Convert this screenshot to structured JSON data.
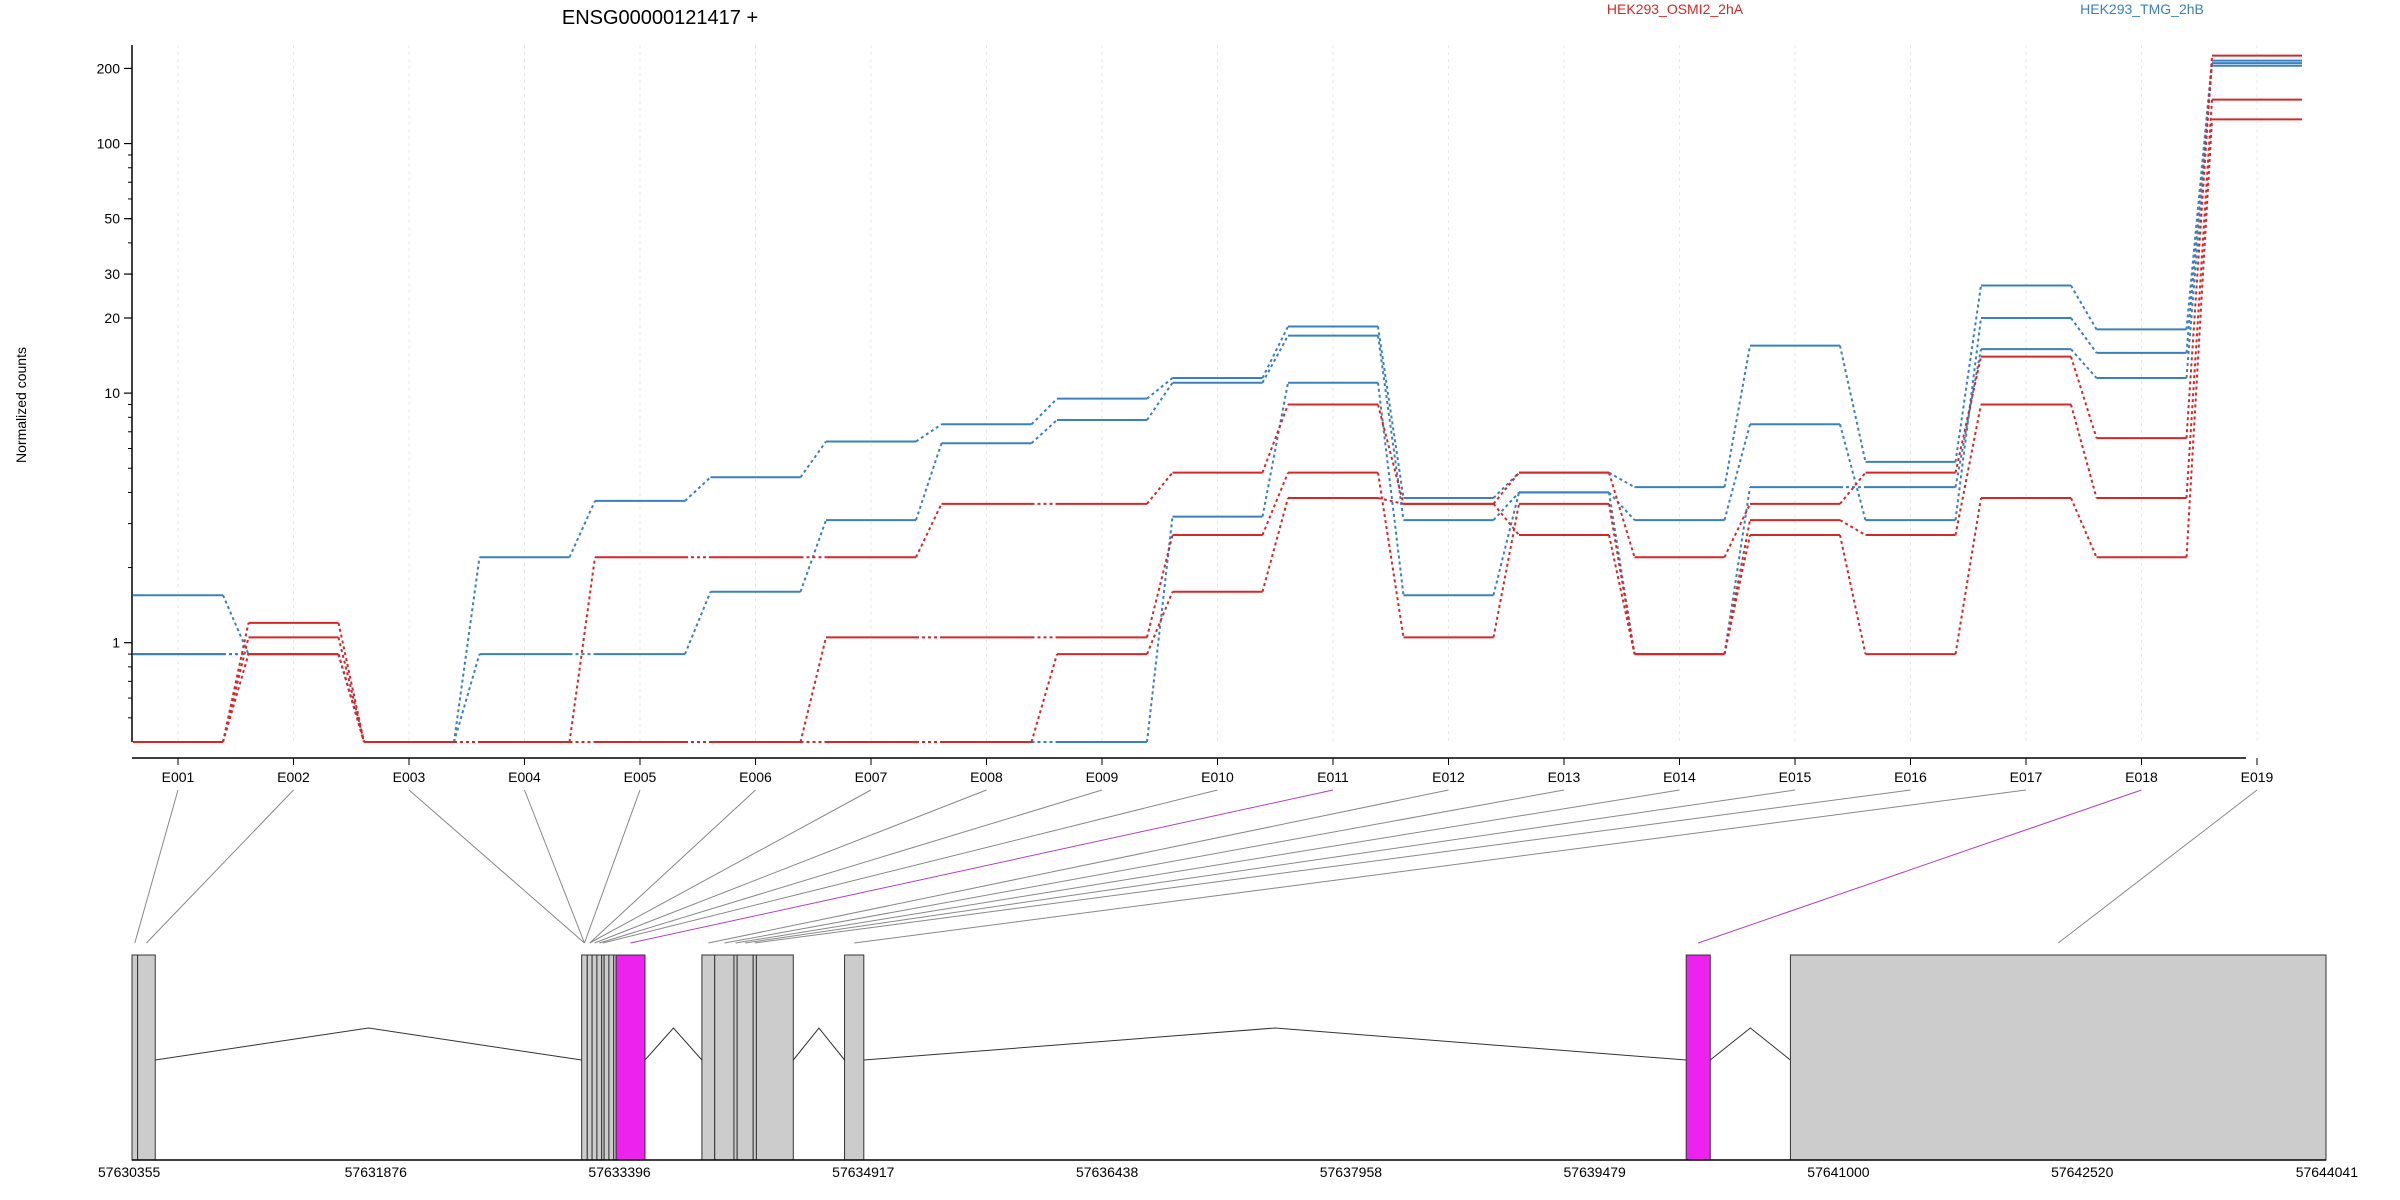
{
  "chart_data": {
    "type": "line",
    "title": "ENSG00000121417 +",
    "ylabel": "Normalized counts",
    "yscale": "log",
    "ylim": [
      0.4,
      260
    ],
    "y_ticks": [
      {
        "value": 1,
        "label": "1"
      },
      {
        "value": 10,
        "label": "10"
      },
      {
        "value": 20,
        "label": "20"
      },
      {
        "value": 30,
        "label": "30"
      },
      {
        "value": 50,
        "label": "50"
      },
      {
        "value": 100,
        "label": "100"
      },
      {
        "value": 200,
        "label": "200"
      }
    ],
    "categories": [
      "E001",
      "E002",
      "E003",
      "E004",
      "E005",
      "E006",
      "E007",
      "E008",
      "E009",
      "E010",
      "E011",
      "E012",
      "E013",
      "E014",
      "E015",
      "E016",
      "E017",
      "E018",
      "E019"
    ],
    "legend": [
      {
        "name": "HEK293_OSMI2_2hA",
        "color": "#d62728"
      },
      {
        "name": "HEK293_TMG_2hB",
        "color": "#3a80c0"
      }
    ],
    "series": [
      {
        "group": "HEK293_TMG_2hB",
        "color": "#3a80c0",
        "values": [
          1.55,
          0.9,
          0.4,
          2.2,
          3.7,
          4.6,
          6.4,
          7.5,
          9.5,
          11.5,
          18.5,
          3.8,
          4.8,
          4.2,
          15.5,
          5.3,
          27,
          18,
          215
        ]
      },
      {
        "group": "HEK293_TMG_2hB",
        "color": "#3a80c0",
        "values": [
          0.9,
          0.9,
          0.4,
          0.9,
          0.9,
          1.6,
          3.1,
          6.3,
          7.8,
          11.0,
          17.0,
          3.1,
          4.0,
          3.1,
          7.5,
          3.1,
          20,
          14.5,
          210
        ]
      },
      {
        "group": "HEK293_TMG_2hB",
        "color": "#3a80c0",
        "values": [
          0.9,
          0.9,
          0.4,
          0.4,
          0.4,
          0.4,
          0.4,
          0.4,
          0.4,
          3.2,
          11.0,
          1.55,
          4.0,
          0.9,
          4.2,
          4.2,
          15,
          11.5,
          205
        ]
      },
      {
        "group": "HEK293_OSMI2_2hA",
        "color": "#d62728",
        "values": [
          0.4,
          1.2,
          0.4,
          0.4,
          2.2,
          2.2,
          2.2,
          3.6,
          3.6,
          4.8,
          9.0,
          3.6,
          4.8,
          2.2,
          3.6,
          4.8,
          14.0,
          6.6,
          225
        ]
      },
      {
        "group": "HEK293_OSMI2_2hA",
        "color": "#d62728",
        "values": [
          0.4,
          1.05,
          0.4,
          0.4,
          0.4,
          0.4,
          1.05,
          1.05,
          1.05,
          2.7,
          4.8,
          1.05,
          3.6,
          0.9,
          3.1,
          2.7,
          9.0,
          3.8,
          150
        ]
      },
      {
        "group": "HEK293_OSMI2_2hA",
        "color": "#d62728",
        "values": [
          0.4,
          0.9,
          0.4,
          0.4,
          0.4,
          0.4,
          0.4,
          0.4,
          0.9,
          1.6,
          3.8,
          3.6,
          2.7,
          0.9,
          2.7,
          0.9,
          3.8,
          2.2,
          125
        ]
      }
    ],
    "genome_axis": {
      "range": [
        57630355,
        57644041
      ],
      "tick_labels": [
        "57630355",
        "57631876",
        "57633396",
        "57634917",
        "57636438",
        "57637958",
        "57639479",
        "57641000",
        "57642520",
        "57644041"
      ]
    },
    "exons": [
      {
        "id": "E001",
        "start": 57630355,
        "end": 57630390,
        "highlight": false
      },
      {
        "id": "E002",
        "start": 57630390,
        "end": 57630500,
        "highlight": false
      },
      {
        "id": "E003",
        "start": 57633160,
        "end": 57633195,
        "highlight": false
      },
      {
        "id": "E004",
        "start": 57633195,
        "end": 57633225,
        "highlight": false
      },
      {
        "id": "E005",
        "start": 57633225,
        "end": 57633255,
        "highlight": false
      },
      {
        "id": "E006",
        "start": 57633255,
        "end": 57633285,
        "highlight": false
      },
      {
        "id": "E007",
        "start": 57633285,
        "end": 57633300,
        "highlight": false
      },
      {
        "id": "E008",
        "start": 57633300,
        "end": 57633330,
        "highlight": false
      },
      {
        "id": "E009",
        "start": 57633330,
        "end": 57633360,
        "highlight": false
      },
      {
        "id": "E010",
        "start": 57633360,
        "end": 57633375,
        "highlight": false
      },
      {
        "id": "E011",
        "start": 57633375,
        "end": 57633555,
        "highlight": true
      },
      {
        "id": "E012",
        "start": 57633910,
        "end": 57633990,
        "highlight": false
      },
      {
        "id": "E013",
        "start": 57633990,
        "end": 57634110,
        "highlight": false
      },
      {
        "id": "E014",
        "start": 57634110,
        "end": 57634130,
        "highlight": false
      },
      {
        "id": "E015",
        "start": 57634130,
        "end": 57634230,
        "highlight": false
      },
      {
        "id": "E016",
        "start": 57634230,
        "end": 57634250,
        "highlight": false
      },
      {
        "id": "E017",
        "start": 57634250,
        "end": 57634480,
        "highlight": false
      },
      {
        "id": "E018",
        "start": 57634800,
        "end": 57634920,
        "highlight": false
      },
      {
        "id": "E019",
        "start": 57640050,
        "end": 57640200,
        "highlight": true
      },
      {
        "id": "E020",
        "start": 57640700,
        "end": 57644041,
        "highlight": false
      }
    ],
    "introns": [
      [
        57630500,
        57633160,
        "up"
      ],
      [
        57633555,
        57633910,
        "up"
      ],
      [
        57634480,
        57634800,
        "up"
      ],
      [
        57634920,
        57640050,
        "up"
      ],
      [
        57640200,
        57640700,
        "up"
      ]
    ],
    "exon_connections": [
      {
        "label": "E001",
        "exon": "E001",
        "highlight": false
      },
      {
        "label": "E002",
        "exon": "E002",
        "highlight": false
      },
      {
        "label": "E003",
        "exon": "E003",
        "highlight": false
      },
      {
        "label": "E004",
        "exon": "E003",
        "highlight": false
      },
      {
        "label": "E005",
        "exon": "E003",
        "highlight": false
      },
      {
        "label": "E006",
        "exon": "E004",
        "highlight": false
      },
      {
        "label": "E007",
        "exon": "E004",
        "highlight": false
      },
      {
        "label": "E008",
        "exon": "E005",
        "highlight": false
      },
      {
        "label": "E009",
        "exon": "E006",
        "highlight": false
      },
      {
        "label": "E010",
        "exon": "E007",
        "highlight": false
      },
      {
        "label": "E011",
        "exon": "E011",
        "highlight": true
      },
      {
        "label": "E012",
        "exon": "E012",
        "highlight": false
      },
      {
        "label": "E013",
        "exon": "E013",
        "highlight": false
      },
      {
        "label": "E014",
        "exon": "E014",
        "highlight": false
      },
      {
        "label": "E015",
        "exon": "E015",
        "highlight": false
      },
      {
        "label": "E016",
        "exon": "E016",
        "highlight": false
      },
      {
        "label": "E017",
        "exon": "E018",
        "highlight": false
      },
      {
        "label": "E018",
        "exon": "E019",
        "highlight": true
      },
      {
        "label": "E019",
        "exon": "E020",
        "highlight": false
      }
    ],
    "colors": {
      "exon_fill": "#cccccc",
      "exon_highlight": "#ee22ee",
      "connector": "#888888",
      "connector_highlight": "#b040c0",
      "grid": "#e8e8e8"
    }
  }
}
